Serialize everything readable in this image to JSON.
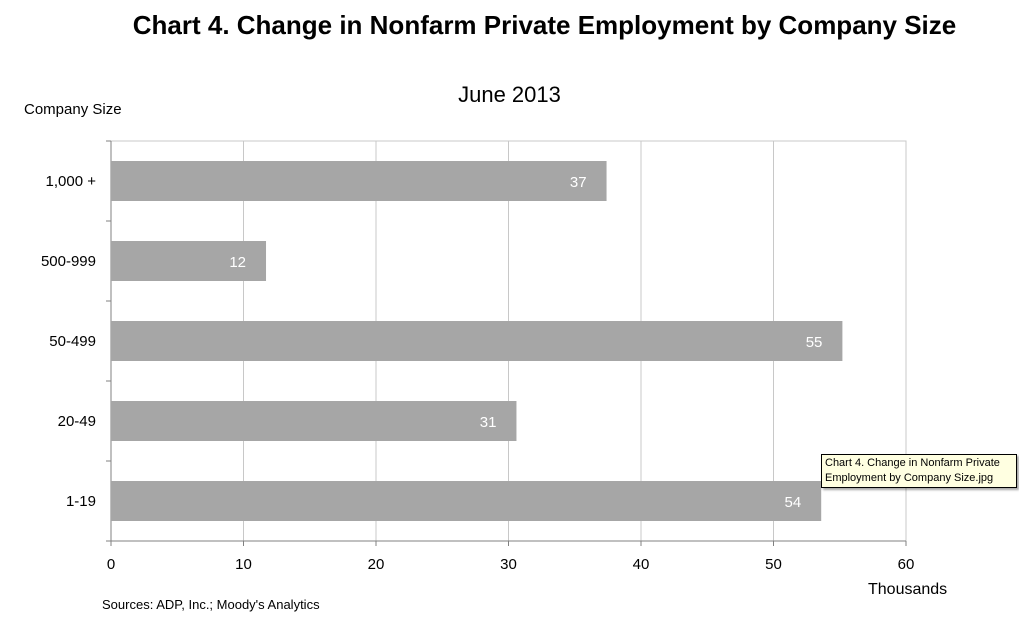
{
  "title": "Chart 4. Change in Nonfarm Private Employment by Company Size",
  "tooltip": "Chart 4. Change in Nonfarm Private Employment by Company Size.jpg",
  "chart_data": {
    "type": "bar",
    "orientation": "horizontal",
    "title": "June 2013",
    "ylabel": "Company Size",
    "xlabel": "Thousands",
    "source": "Sources: ADP, Inc.; Moody's Analytics",
    "categories": [
      "1,000 +",
      "500-999",
      "50-499",
      "20-49",
      "1-19"
    ],
    "values": [
      37,
      12,
      55,
      31,
      54
    ],
    "bar_extent": [
      37.4,
      11.7,
      55.2,
      30.6,
      53.6
    ],
    "xlim": [
      0,
      60
    ],
    "xticks": [
      0,
      10,
      20,
      30,
      40,
      50,
      60
    ],
    "grid": true,
    "bar_color": "#a6a6a6",
    "grid_color": "#c8c8c8",
    "label_color": "#ffffff"
  }
}
